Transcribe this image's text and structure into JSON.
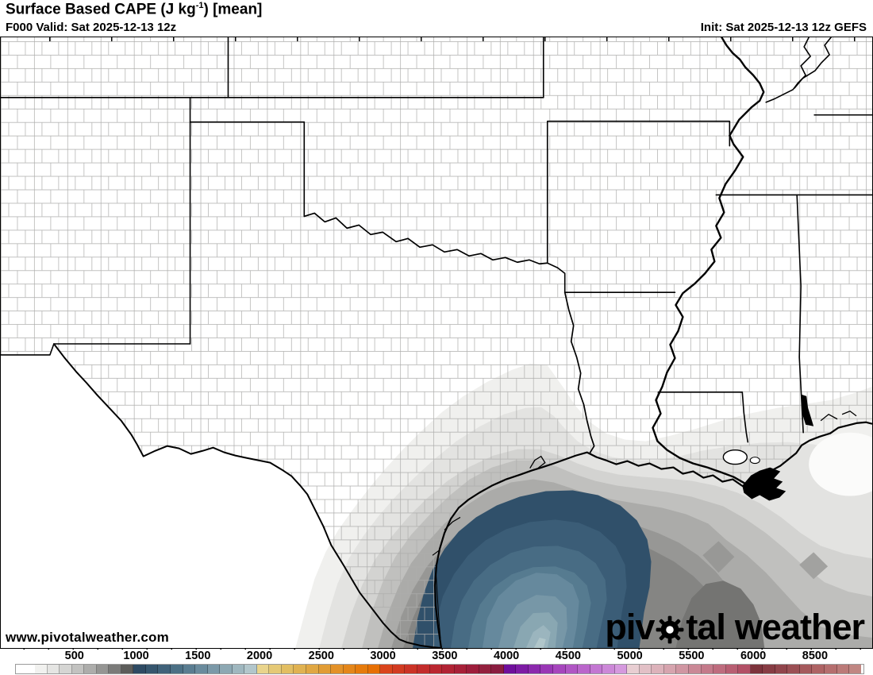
{
  "header": {
    "title_pre": "Surface Based CAPE (J kg",
    "title_sup": "-1",
    "title_post": ") [mean]",
    "valid": "F000 Valid: Sat 2025-12-13 12z",
    "init": "Init: Sat 2025-12-13 12z GEFS"
  },
  "map": {
    "watermark": "www.pivotalweather.com",
    "logo_part1": "piv",
    "logo_part2": "tal",
    "logo_part3": "weather",
    "logo_color": "#000000",
    "shading_region": "Gulf of Mexico / Texas-Louisiana coast",
    "max_shaded_band_color": "#b2c6cb"
  },
  "colorbar": {
    "track_border": "#9a9a9a",
    "cell_border": "rgba(0,0,0,0.28)",
    "colors": [
      "#f1f1ef",
      "#e5e5e3",
      "#d5d5d3",
      "#c2c2c0",
      "#adadab",
      "#959593",
      "#7b7b79",
      "#5c5c5a",
      "#2e4a63",
      "#36566e",
      "#40627a",
      "#4c7085",
      "#5a7d91",
      "#6a8b9d",
      "#7b99a8",
      "#8da8b3",
      "#9fb7bf",
      "#b2c6cb",
      "#e9d48c",
      "#e5c976",
      "#e2be62",
      "#e0b251",
      "#e0a743",
      "#e19c35",
      "#e39128",
      "#e4861a",
      "#e67b0c",
      "#e77004",
      "#da441c",
      "#d23b21",
      "#cb3326",
      "#c32c2b",
      "#ba2730",
      "#b12334",
      "#a72038",
      "#9d1d3b",
      "#93203e",
      "#8a1d40",
      "#6f0f9c",
      "#7d1ba4",
      "#8b29ad",
      "#9937b5",
      "#a646bd",
      "#b056c4",
      "#ba66cb",
      "#c377d2",
      "#cc88d8",
      "#d599de",
      "#e8ced2",
      "#e2c0c6",
      "#dcb2ba",
      "#d6a4ae",
      "#d096a2",
      "#ca8896",
      "#c47a8a",
      "#be6c7e",
      "#b85e72",
      "#b25066",
      "#7d333c",
      "#873c44",
      "#91454c",
      "#9b4f54",
      "#a5595c",
      "#ae6364",
      "#b56e6e",
      "#bb7a78",
      "#c08682"
    ],
    "labels": [
      {
        "text": "500",
        "cell": 3.2
      },
      {
        "text": "1000",
        "cell": 8.2
      },
      {
        "text": "1500",
        "cell": 13.2
      },
      {
        "text": "2000",
        "cell": 18.2
      },
      {
        "text": "2500",
        "cell": 23.2
      },
      {
        "text": "3000",
        "cell": 28.2
      },
      {
        "text": "3500",
        "cell": 33.2
      },
      {
        "text": "4000",
        "cell": 38.2
      },
      {
        "text": "4500",
        "cell": 43.2
      },
      {
        "text": "5000",
        "cell": 48.2
      },
      {
        "text": "5500",
        "cell": 53.2
      },
      {
        "text": "6000",
        "cell": 58.2
      },
      {
        "text": "8500",
        "cell": 63.2
      }
    ]
  }
}
